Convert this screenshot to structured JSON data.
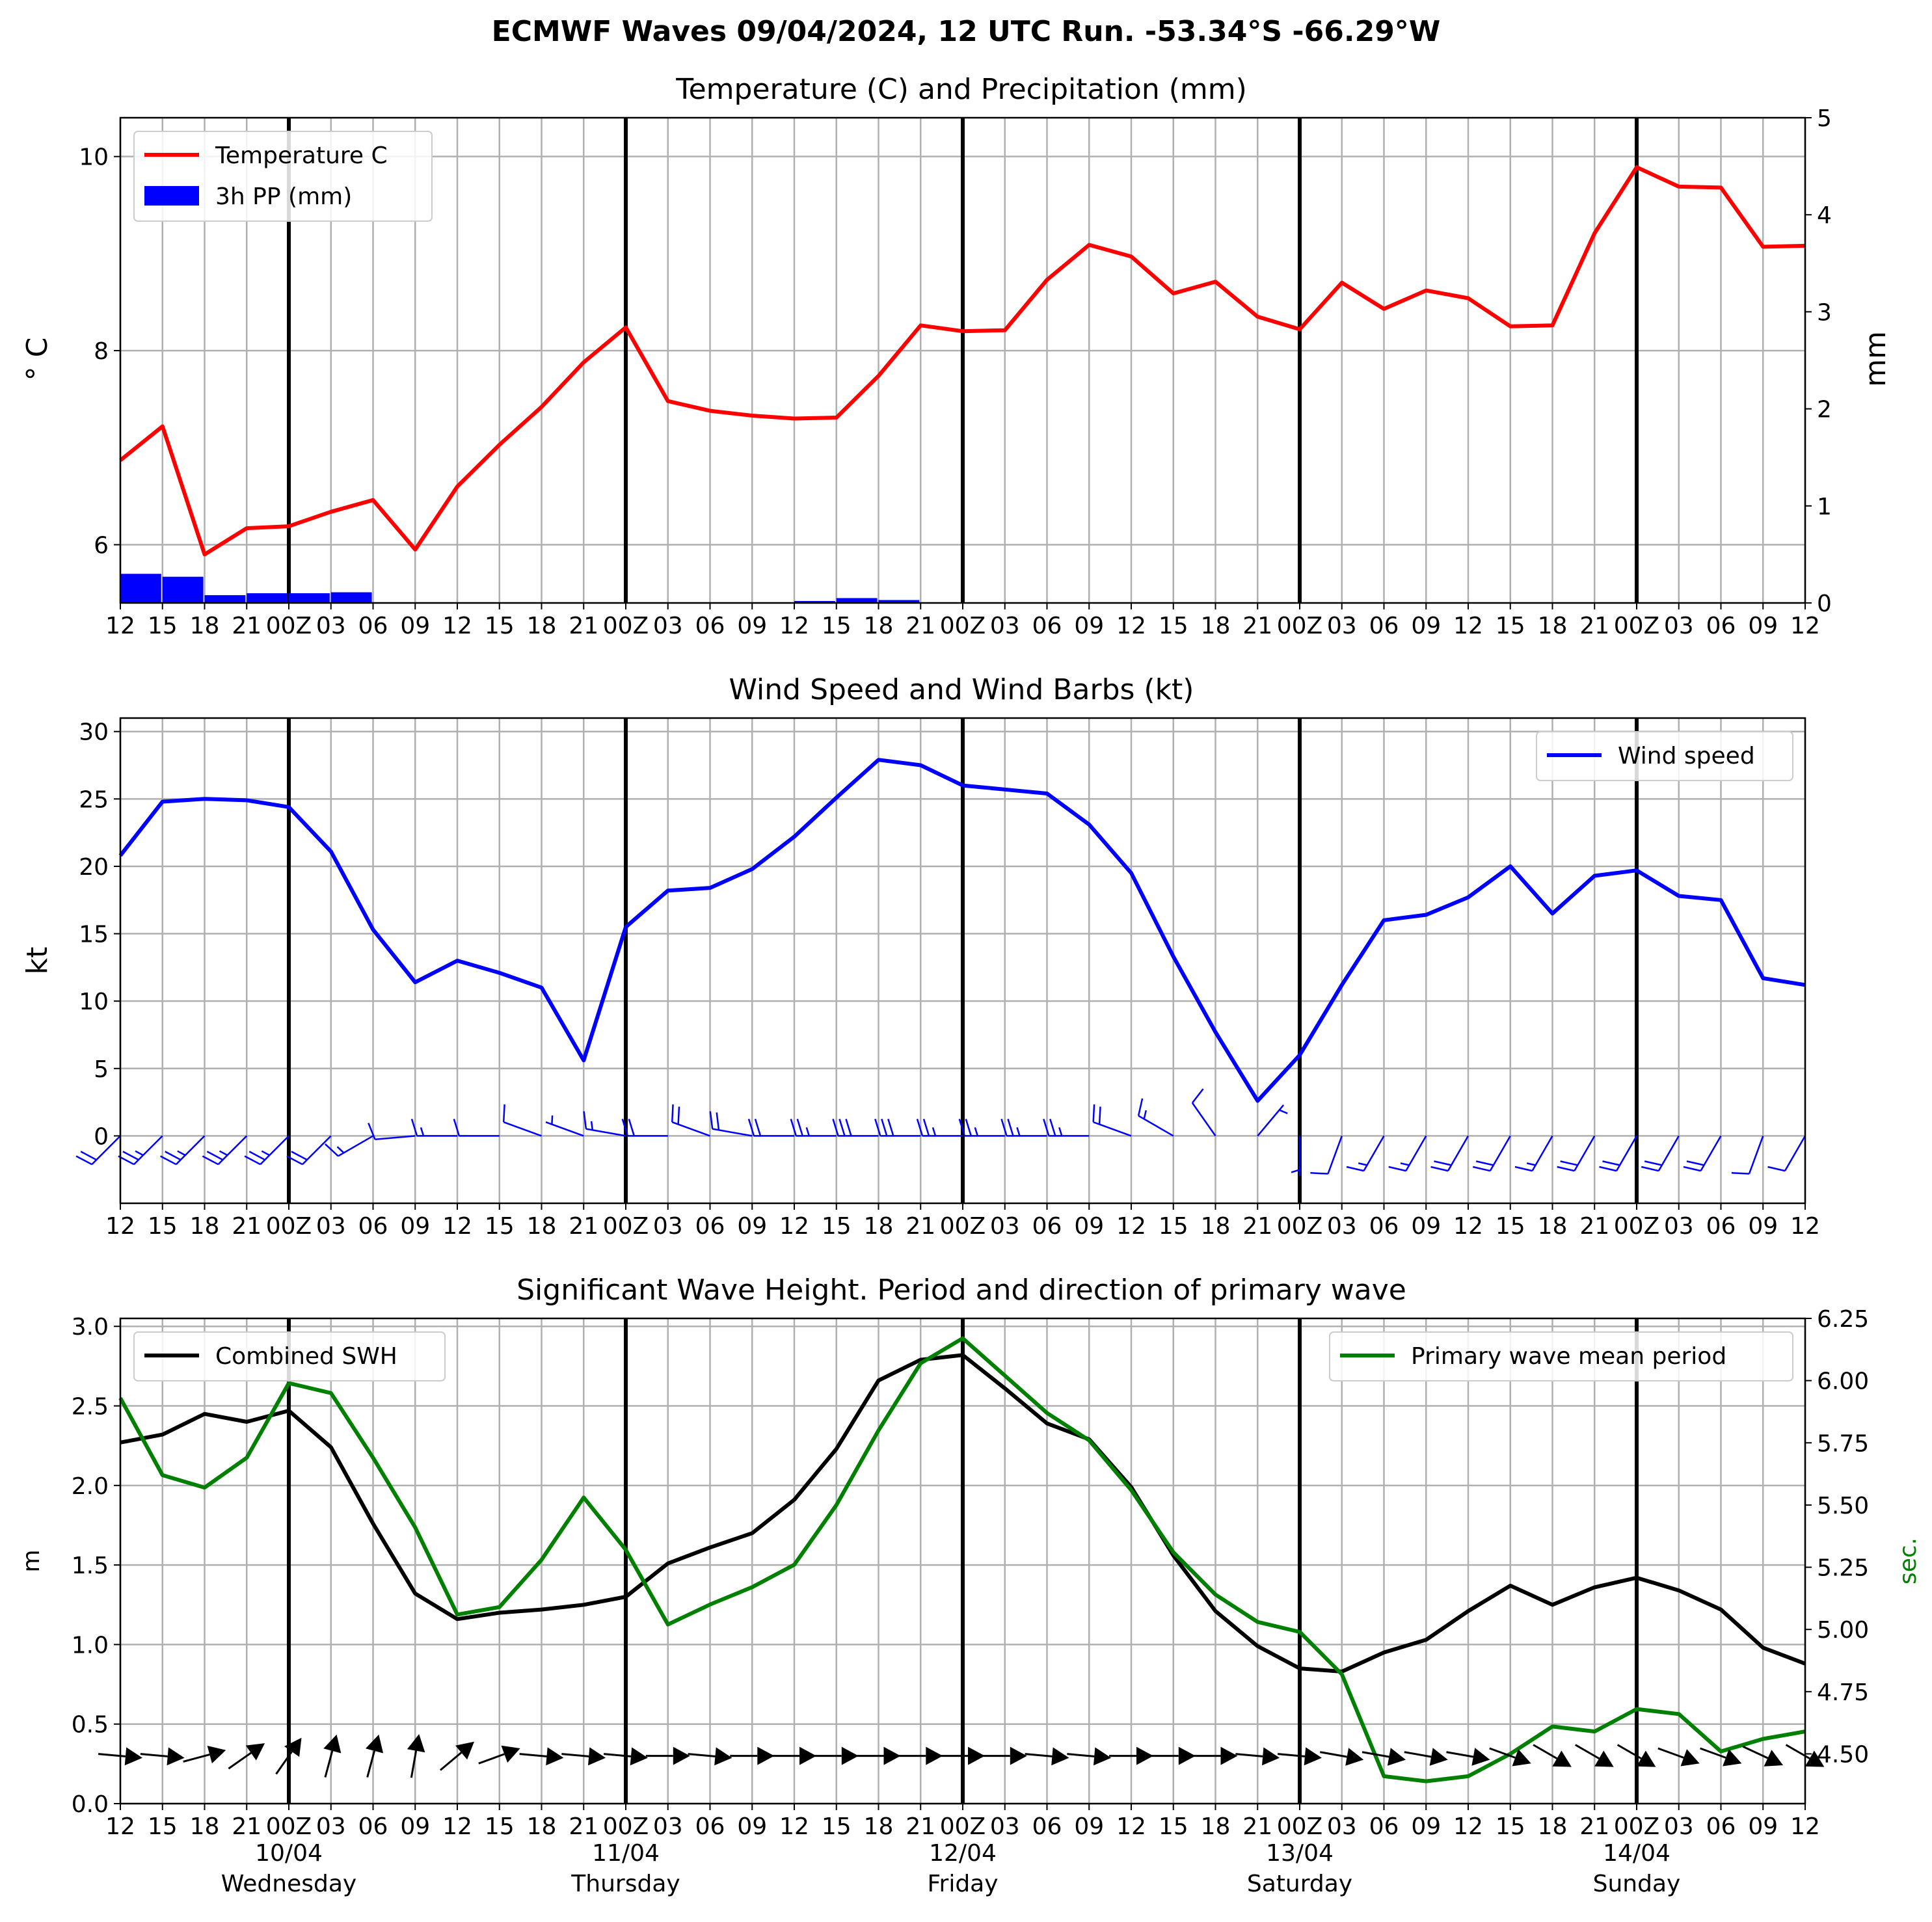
{
  "suptitle": "ECMWF Waves 09/04/2024, 12 UTC Run. -53.34°S -66.29°W",
  "x_ticks": [
    "12",
    "15",
    "18",
    "21",
    "00Z",
    "03",
    "06",
    "09",
    "12",
    "15",
    "18",
    "21",
    "00Z",
    "03",
    "06",
    "09",
    "12",
    "15",
    "18",
    "21",
    "00Z",
    "03",
    "06",
    "09",
    "12",
    "15",
    "18",
    "21",
    "00Z",
    "03",
    "06",
    "09",
    "12",
    "15",
    "18",
    "21",
    "00Z",
    "03",
    "06",
    "09",
    "12"
  ],
  "day_labels": [
    {
      "date": "10/04",
      "day": "Wednesday"
    },
    {
      "date": "11/04",
      "day": "Thursday"
    },
    {
      "date": "12/04",
      "day": "Friday"
    },
    {
      "date": "13/04",
      "day": "Saturday"
    },
    {
      "date": "14/04",
      "day": "Sunday"
    }
  ],
  "colors": {
    "temperature": "#ff0000",
    "precip": "#0000ff",
    "wind": "#0000ff",
    "swh": "#000000",
    "period": "#008000",
    "grid": "#b0b0b0"
  },
  "chart_data": [
    {
      "type": "line",
      "title": "Temperature (C) and Precipitation (mm)",
      "ylabel": "$^\\circ$C",
      "ylabel_display": "° C",
      "ylabel_right": "mm",
      "ylim": [
        5.4,
        10.4
      ],
      "ylim_right": [
        0,
        5
      ],
      "yticks": [
        6,
        8,
        10
      ],
      "yticks_right": [
        0,
        1,
        2,
        3,
        4,
        5
      ],
      "grid": true,
      "legend_position": "top-left",
      "legend": [
        "Temperature C",
        "3h PP (mm)"
      ],
      "series": [
        {
          "name": "Temperature C",
          "axis": "left",
          "values": [
            6.87,
            7.22,
            5.9,
            6.17,
            6.19,
            6.34,
            6.46,
            5.95,
            6.6,
            7.03,
            7.42,
            7.88,
            8.24,
            7.48,
            7.38,
            7.33,
            7.3,
            7.31,
            7.74,
            8.26,
            8.2,
            8.21,
            8.73,
            9.09,
            8.97,
            8.59,
            8.71,
            8.35,
            8.22,
            8.7,
            8.43,
            8.62,
            8.54,
            8.25,
            8.26,
            9.21,
            9.89,
            9.69,
            9.68,
            9.07,
            9.08
          ]
        },
        {
          "name": "3h PP (mm)",
          "axis": "right",
          "type": "bar",
          "values": [
            0.3,
            0.27,
            0.08,
            0.1,
            0.1,
            0.11,
            0,
            0,
            0,
            0,
            0,
            0,
            0,
            0,
            0,
            0,
            0.02,
            0.05,
            0.03,
            0,
            0,
            0,
            0,
            0,
            0,
            0,
            0,
            0,
            0,
            0,
            0,
            0,
            0,
            0,
            0,
            0,
            0,
            0,
            0,
            0
          ]
        }
      ]
    },
    {
      "type": "line",
      "title": "Wind Speed and Wind Barbs (kt)",
      "ylabel": "kt",
      "ylim": [
        -5,
        31
      ],
      "yticks": [
        0,
        5,
        10,
        15,
        20,
        25,
        30
      ],
      "grid": true,
      "legend_position": "top-right",
      "legend": [
        "Wind speed"
      ],
      "series": [
        {
          "name": "Wind speed",
          "values": [
            20.8,
            24.8,
            25.0,
            24.9,
            24.4,
            21.1,
            15.3,
            11.4,
            13.0,
            12.1,
            11.0,
            5.6,
            15.5,
            18.2,
            18.4,
            19.8,
            22.2,
            25.1,
            27.9,
            27.5,
            26.0,
            25.7,
            25.4,
            23.1,
            19.5,
            13.3,
            7.7,
            2.6,
            6.0,
            11.2,
            16.0,
            16.4,
            17.7,
            20.0,
            16.5,
            19.3,
            19.7,
            17.8,
            17.5,
            11.7,
            11.2
          ]
        }
      ],
      "barb_direction_deg": [
        225,
        225,
        225,
        225,
        225,
        225,
        240,
        265,
        270,
        270,
        290,
        290,
        280,
        270,
        290,
        280,
        270,
        270,
        270,
        270,
        270,
        270,
        270,
        270,
        290,
        300,
        325,
        40,
        180,
        200,
        210,
        210,
        210,
        210,
        210,
        210,
        210,
        210,
        210,
        200,
        210
      ],
      "barb_speed_kt": [
        20.8,
        24.8,
        25.0,
        24.9,
        24.4,
        21.1,
        15.3,
        11.4,
        13.0,
        12.1,
        11.0,
        5.6,
        15.5,
        18.2,
        18.4,
        19.8,
        22.2,
        25.1,
        27.9,
        27.5,
        26.0,
        25.7,
        25.4,
        23.1,
        19.5,
        13.3,
        7.7,
        2.6,
        6.0,
        11.2,
        16.0,
        16.4,
        17.7,
        20.0,
        16.5,
        19.3,
        19.7,
        17.8,
        17.5,
        11.7,
        11.2
      ]
    },
    {
      "type": "line",
      "title": "Significant Wave Height. Period and direction of primary wave",
      "ylabel": "m",
      "ylabel_right": "sec.",
      "ylim": [
        0,
        3.05
      ],
      "ylim_right": [
        4.3,
        6.25
      ],
      "yticks": [
        0.0,
        0.5,
        1.0,
        1.5,
        2.0,
        2.5,
        3.0
      ],
      "yticks_right": [
        4.5,
        4.75,
        5.0,
        5.25,
        5.5,
        5.75,
        6.0,
        6.25
      ],
      "grid": true,
      "legend": [
        "Combined SWH",
        "Primary wave mean period"
      ],
      "series": [
        {
          "name": "Combined SWH",
          "axis": "left",
          "values": [
            2.27,
            2.32,
            2.45,
            2.4,
            2.47,
            2.24,
            1.76,
            1.32,
            1.16,
            1.2,
            1.22,
            1.25,
            1.3,
            1.51,
            1.61,
            1.7,
            1.91,
            2.23,
            2.66,
            2.79,
            2.82,
            2.61,
            2.39,
            2.29,
            1.99,
            1.56,
            1.21,
            0.99,
            0.85,
            0.83,
            0.95,
            1.03,
            1.21,
            1.37,
            1.25,
            1.36,
            1.42,
            1.34,
            1.22,
            0.98,
            0.88
          ]
        },
        {
          "name": "Primary wave mean period",
          "axis": "right",
          "values": [
            5.93,
            5.62,
            5.57,
            5.69,
            5.99,
            5.95,
            5.69,
            5.41,
            5.06,
            5.09,
            5.28,
            5.53,
            5.32,
            5.02,
            5.1,
            5.17,
            5.26,
            5.5,
            5.8,
            6.07,
            6.17,
            6.02,
            5.87,
            5.76,
            5.56,
            5.31,
            5.14,
            5.03,
            4.99,
            4.82,
            4.41,
            4.39,
            4.41,
            4.5,
            4.61,
            4.59,
            4.68,
            4.66,
            4.51,
            4.56,
            4.59
          ]
        }
      ],
      "wave_direction_to_deg": [
        95,
        95,
        75,
        55,
        35,
        15,
        15,
        10,
        50,
        70,
        95,
        95,
        95,
        90,
        95,
        90,
        90,
        90,
        90,
        90,
        90,
        90,
        95,
        95,
        90,
        90,
        90,
        95,
        95,
        100,
        100,
        100,
        100,
        110,
        120,
        120,
        120,
        110,
        110,
        115,
        120
      ]
    }
  ]
}
